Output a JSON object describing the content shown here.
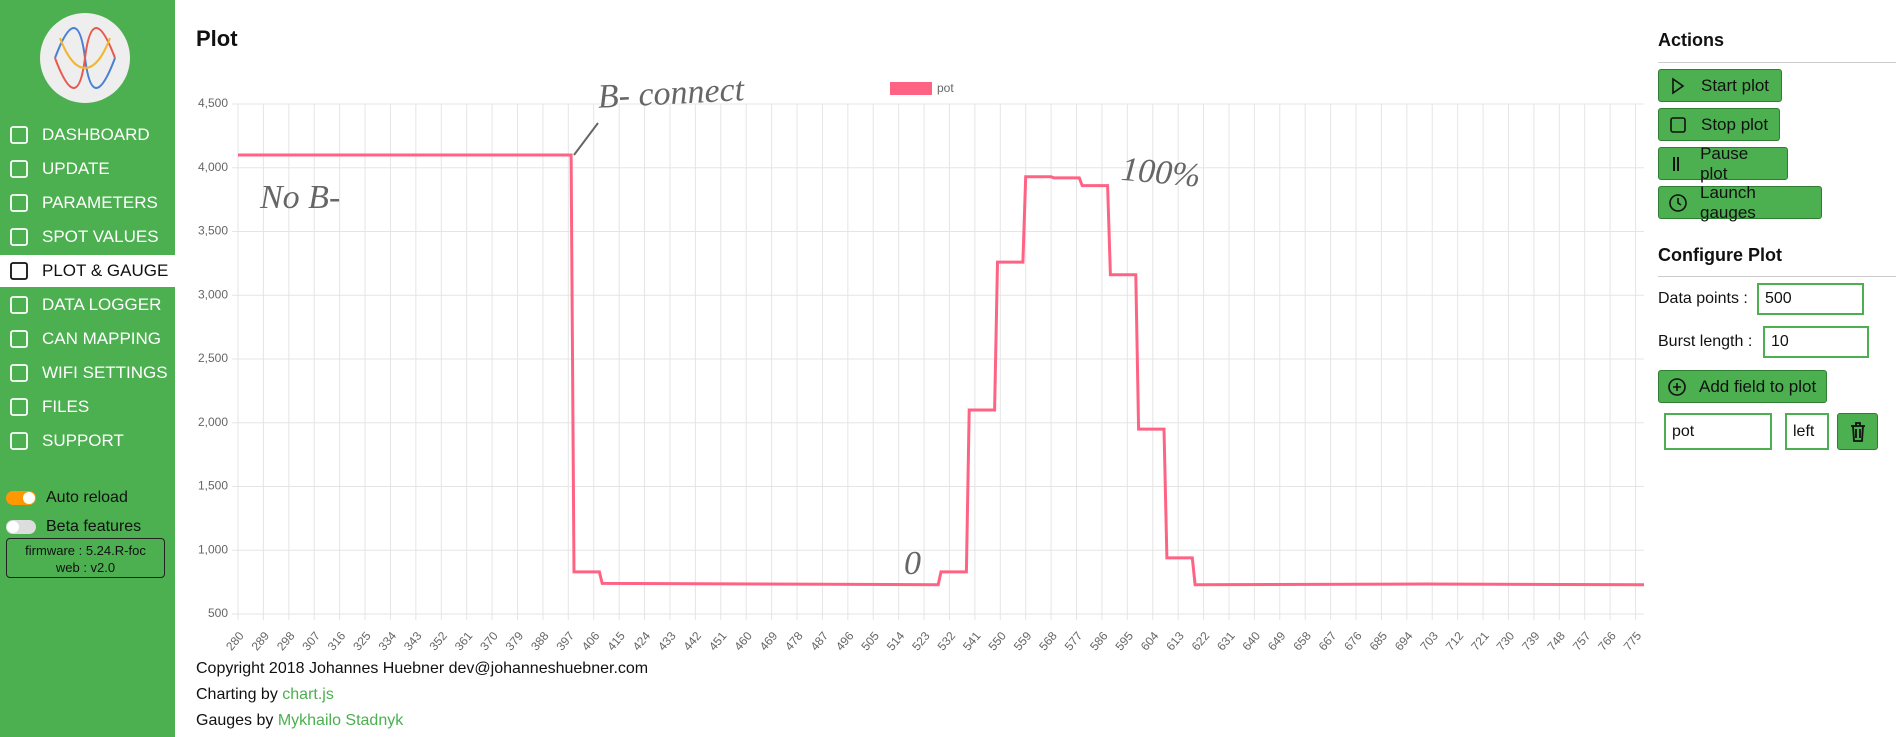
{
  "sidebar": {
    "menu": [
      "DASHBOARD",
      "UPDATE",
      "PARAMETERS",
      "SPOT VALUES",
      "PLOT & GAUGE",
      "DATA LOGGER",
      "CAN MAPPING",
      "WIFI SETTINGS",
      "FILES",
      "SUPPORT"
    ],
    "toggles": [
      "Auto reload",
      "Beta features"
    ],
    "firmware": "firmware : 5.24.R-foc",
    "web": "web : v2.0"
  },
  "header": {
    "title": "Plot"
  },
  "chart_data": {
    "type": "line",
    "series": [
      {
        "name": "pot",
        "color": "#ff6384",
        "x": [
          280,
          398,
          399,
          408,
          409,
          528,
          529,
          538,
          539,
          548,
          549,
          558,
          559,
          568,
          569,
          578,
          579,
          588,
          589,
          598,
          599,
          608,
          609,
          618,
          619,
          700,
          778
        ],
        "values": [
          4100,
          4100,
          830,
          830,
          740,
          730,
          830,
          830,
          2100,
          2100,
          3260,
          3260,
          3930,
          3930,
          3920,
          3920,
          3860,
          3860,
          3160,
          3160,
          1950,
          1950,
          940,
          940,
          730,
          735,
          730
        ]
      }
    ],
    "xlim": [
      280,
      778
    ],
    "xticks": [
      280,
      289,
      298,
      307,
      316,
      325,
      334,
      343,
      352,
      361,
      370,
      379,
      388,
      397,
      406,
      415,
      424,
      433,
      442,
      451,
      460,
      469,
      478,
      487,
      496,
      505,
      514,
      523,
      532,
      541,
      550,
      559,
      568,
      577,
      586,
      595,
      604,
      613,
      622,
      631,
      640,
      649,
      658,
      667,
      676,
      685,
      694,
      703,
      712,
      721,
      730,
      739,
      748,
      757,
      766,
      775
    ],
    "ylim": [
      500,
      4500
    ],
    "yticks": [
      500,
      {
        "value": 1000,
        "label": "1,000"
      },
      {
        "value": 1500,
        "label": "1,500"
      },
      {
        "value": 2000,
        "label": "2,000"
      },
      {
        "value": 2500,
        "label": "2,500"
      },
      {
        "value": 3000,
        "label": "3,000"
      },
      {
        "value": 3500,
        "label": "3,500"
      },
      {
        "value": 4000,
        "label": "4,000"
      },
      {
        "value": 4500,
        "label": "4,500"
      }
    ],
    "grid": true,
    "legend": "top",
    "annotations": [
      "B- connect",
      "No B-",
      "100%",
      "0"
    ]
  },
  "footer": {
    "copyright": "Copyright 2018 Johannes Huebner dev@johanneshuebner.com",
    "charting": "Charting by ",
    "charting_link": "chart.js",
    "gauges": "Gauges by ",
    "gauges_link": "Mykhailo Stadnyk"
  },
  "actions": {
    "title": "Actions",
    "buttons": [
      "Start plot",
      "Stop plot",
      "Pause plot",
      "Launch gauges"
    ]
  },
  "configure": {
    "title": "Configure Plot",
    "data_points_label": "Data points :",
    "data_points": "500",
    "burst_label": "Burst length :",
    "burst": "10",
    "add_button": "Add field to plot",
    "field": "pot",
    "axis": "left"
  }
}
